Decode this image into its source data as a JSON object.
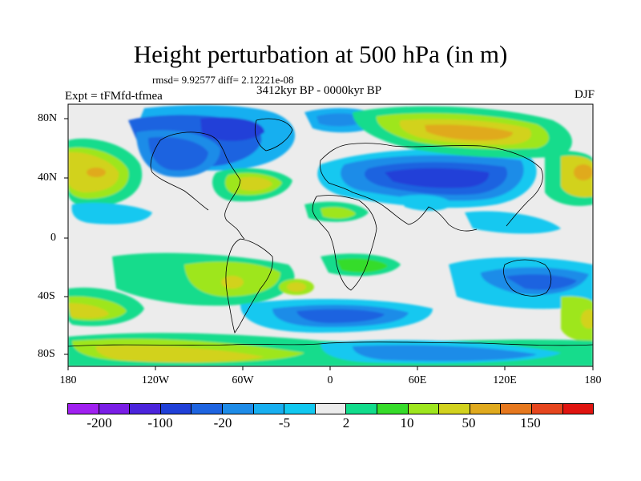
{
  "title": "Height perturbation at 500 hPa (in m)",
  "stats": "rmsd= 9.92577 diff= 2.12221e-08",
  "period": "3412kyr BP - 0000kyr BP",
  "experiment": "Expt = tFMfd-tfmea",
  "season": "DJF",
  "lat_labels": [
    "80N",
    "40N",
    "0",
    "40S",
    "80S"
  ],
  "lon_labels": [
    "180",
    "120W",
    "60W",
    "0",
    "60E",
    "120E",
    "180"
  ],
  "colorbar": {
    "colors": [
      "#a020f0",
      "#7a1ee6",
      "#4b24dc",
      "#2040d8",
      "#1e64e0",
      "#1e8ce8",
      "#18aff0",
      "#12c8f0",
      "#ececec",
      "#12dc8c",
      "#36dc2a",
      "#9ee61e",
      "#d2d21e",
      "#e0aa1e",
      "#e6781e",
      "#e6461e",
      "#e01410"
    ],
    "labels": [
      "-200",
      "-100",
      "-20",
      "-5",
      "2",
      "10",
      "50",
      "150"
    ]
  }
}
